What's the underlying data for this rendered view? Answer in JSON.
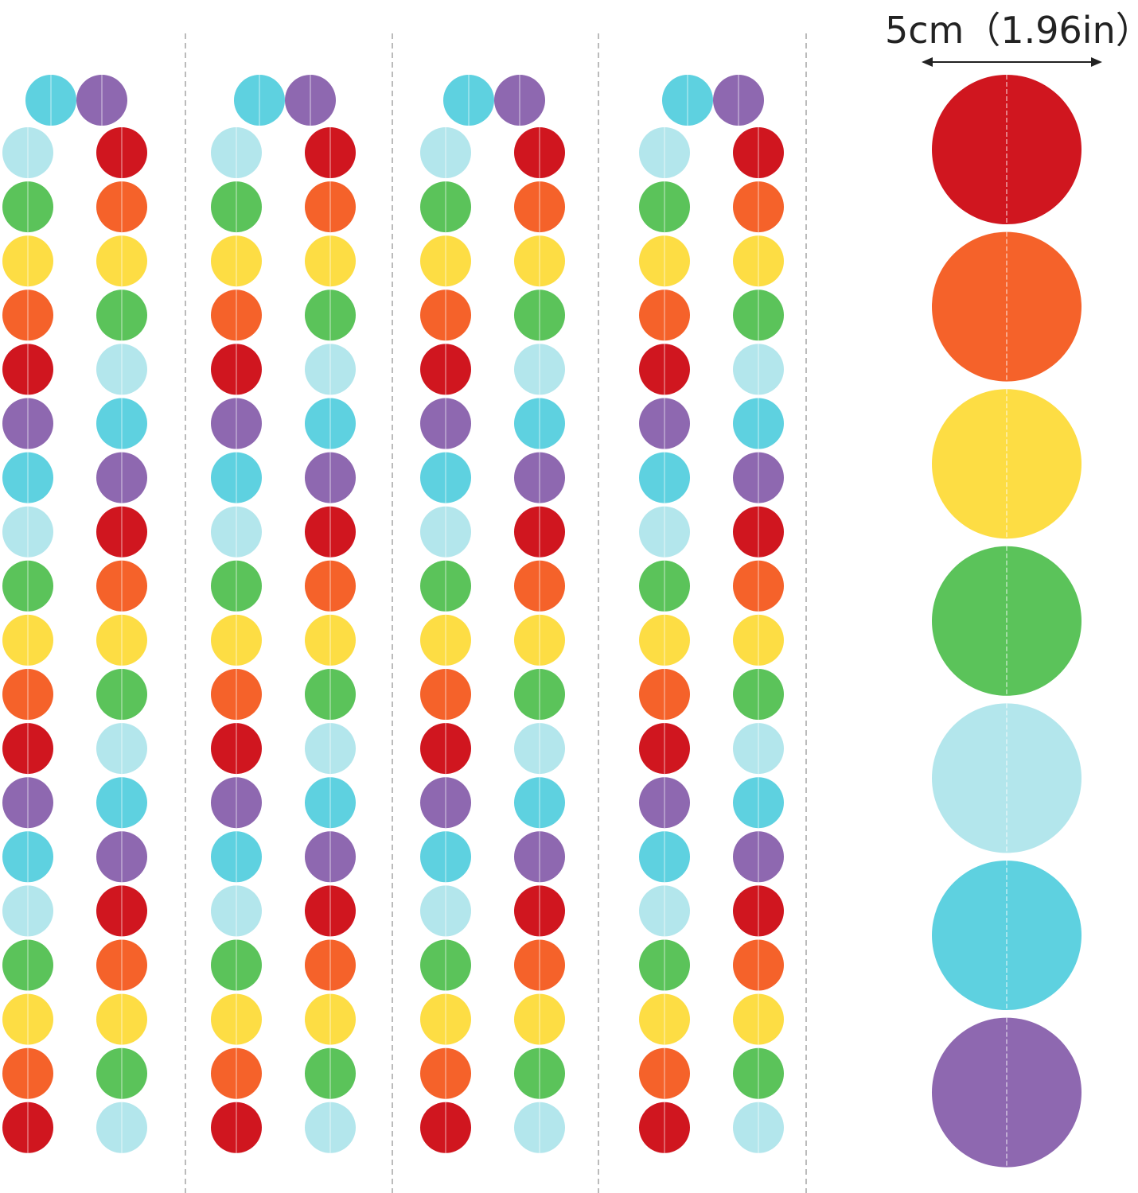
{
  "measurement": {
    "label": "5cm（1.96in）"
  },
  "colors": {
    "red": "#d0161f",
    "orange": "#f5622a",
    "yellow": "#fddd44",
    "green": "#5bc35a",
    "light_blue": "#b3e6ec",
    "cyan": "#5ed1e0",
    "purple": "#8e68b0"
  },
  "garlands": {
    "count": 4,
    "top_pair": [
      "cyan",
      "purple"
    ],
    "left_strand": [
      "light_blue",
      "green",
      "yellow",
      "orange",
      "red",
      "purple",
      "cyan",
      "light_blue",
      "green",
      "yellow",
      "orange",
      "red",
      "purple",
      "cyan",
      "light_blue",
      "green",
      "yellow",
      "orange",
      "red"
    ],
    "right_strand": [
      "red",
      "orange",
      "yellow",
      "green",
      "light_blue",
      "cyan",
      "purple",
      "red",
      "orange",
      "yellow",
      "green",
      "light_blue",
      "cyan",
      "purple",
      "red",
      "orange",
      "yellow",
      "green",
      "light_blue"
    ]
  },
  "detail_strand": [
    "red",
    "orange",
    "yellow",
    "green",
    "light_blue",
    "cyan",
    "purple"
  ]
}
